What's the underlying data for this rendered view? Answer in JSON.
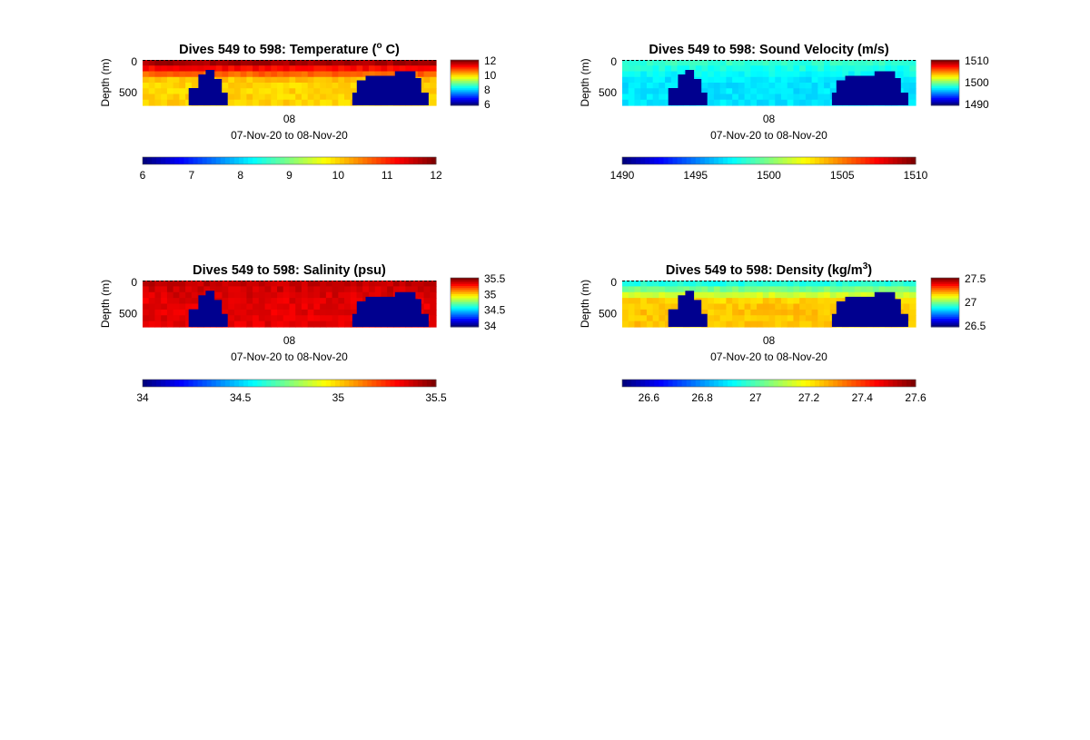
{
  "chart_data": [
    {
      "type": "heatmap",
      "title": "Dives 549 to 598: Temperature (",
      "title_sup": "o",
      "title_tail": " C)",
      "ylabel": "Depth (m)",
      "yticks": [
        "0",
        "500"
      ],
      "xtick": "08",
      "date_range": "07-Nov-20 to 08-Nov-20",
      "clim": [
        6,
        12
      ],
      "side_colorbar_ticks": [
        "12",
        "10",
        "8",
        "6"
      ],
      "bottom_colorbar_ticks": [
        "6",
        "7",
        "8",
        "9",
        "10",
        "11",
        "12"
      ],
      "surface_value": 11.8,
      "deep_value": 10.0,
      "data_gap_color": "#00008f",
      "colormap": "jet"
    },
    {
      "type": "heatmap",
      "title": "Dives 549 to 598: Sound Velocity (m/s)",
      "title_sup": "",
      "title_tail": "",
      "ylabel": "Depth (m)",
      "yticks": [
        "0",
        "500"
      ],
      "xtick": "08",
      "date_range": "07-Nov-20 to 08-Nov-20",
      "clim": [
        1490,
        1510
      ],
      "side_colorbar_ticks": [
        "1510",
        "1500",
        "1490"
      ],
      "bottom_colorbar_ticks": [
        "1490",
        "1495",
        "1500",
        "1505",
        "1510"
      ],
      "surface_value": 1498.5,
      "deep_value": 1497.0,
      "data_gap_color": "#00008f",
      "colormap": "jet"
    },
    {
      "type": "heatmap",
      "title": "Dives 549 to 598: Salinity (psu)",
      "title_sup": "",
      "title_tail": "",
      "ylabel": "Depth (m)",
      "yticks": [
        "0",
        "500"
      ],
      "xtick": "08",
      "date_range": "07-Nov-20 to 08-Nov-20",
      "clim": [
        34,
        35.5
      ],
      "side_colorbar_ticks": [
        "35.5",
        "35",
        "34.5",
        "34"
      ],
      "bottom_colorbar_ticks": [
        "34",
        "34.5",
        "35",
        "35.5"
      ],
      "surface_value": 35.4,
      "deep_value": 35.35,
      "data_gap_color": "#00008f",
      "colormap": "jet"
    },
    {
      "type": "heatmap",
      "title": "Dives 549 to 598: Density (kg/m",
      "title_sup": "3",
      "title_tail": ")",
      "ylabel": "Depth (m)",
      "yticks": [
        "0",
        "500"
      ],
      "xtick": "08",
      "date_range": "07-Nov-20 to 08-Nov-20",
      "clim": [
        26.5,
        27.6
      ],
      "side_colorbar_ticks": [
        "27.5",
        "27",
        "26.5"
      ],
      "bottom_colorbar_ticks": [
        "26.6",
        "26.8",
        "27",
        "27.2",
        "27.4",
        "27.6"
      ],
      "surface_value": 26.95,
      "deep_value": 27.25,
      "data_gap_color": "#00008f",
      "colormap": "jet"
    }
  ]
}
